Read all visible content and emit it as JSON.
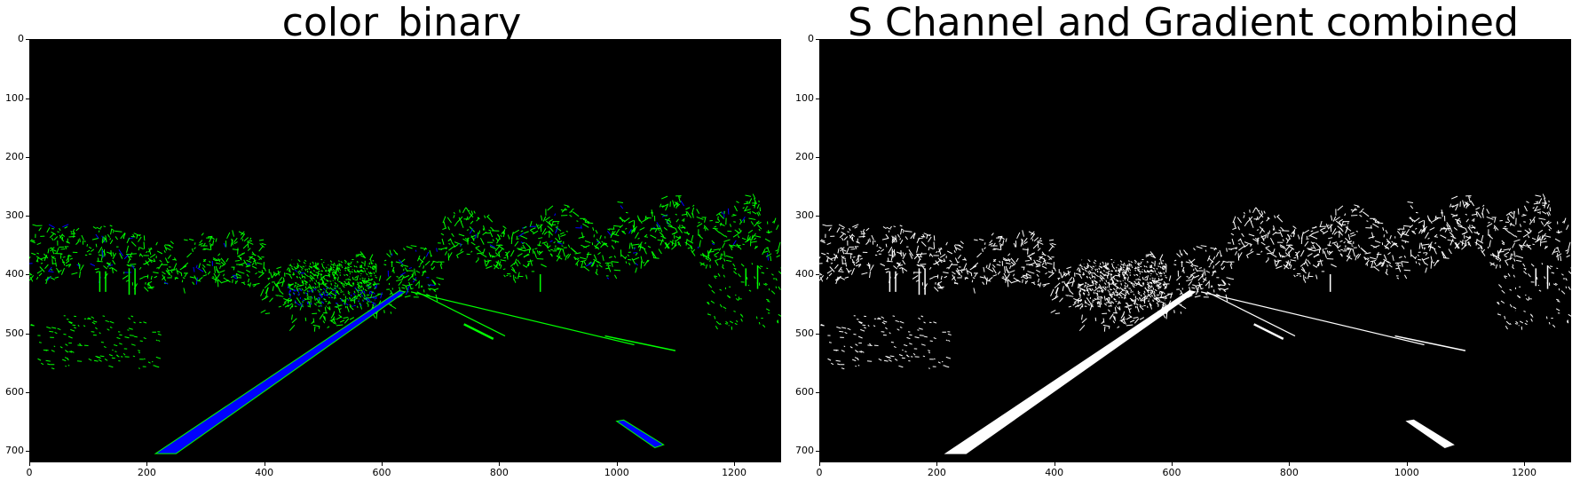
{
  "figure": {
    "panels": [
      {
        "title": "color_binary",
        "mode": "color",
        "x_ticks": [
          "0",
          "200",
          "400",
          "600",
          "800",
          "1000",
          "1200"
        ],
        "y_ticks": [
          "0",
          "100",
          "200",
          "300",
          "400",
          "500",
          "600",
          "700"
        ]
      },
      {
        "title": "S Channel and Gradient combined",
        "mode": "mono",
        "x_ticks": [
          "0",
          "200",
          "400",
          "600",
          "800",
          "1000",
          "1200"
        ],
        "y_ticks": [
          "0",
          "100",
          "200",
          "300",
          "400",
          "500",
          "600",
          "700"
        ]
      }
    ],
    "image_extent": {
      "x": [
        0,
        1280
      ],
      "y": [
        720,
        0
      ]
    },
    "colors": {
      "gradient_pixels": "#00ff00",
      "color_pixels": "#0000ff",
      "binary_pixels": "#ffffff",
      "background": "#000000"
    }
  }
}
